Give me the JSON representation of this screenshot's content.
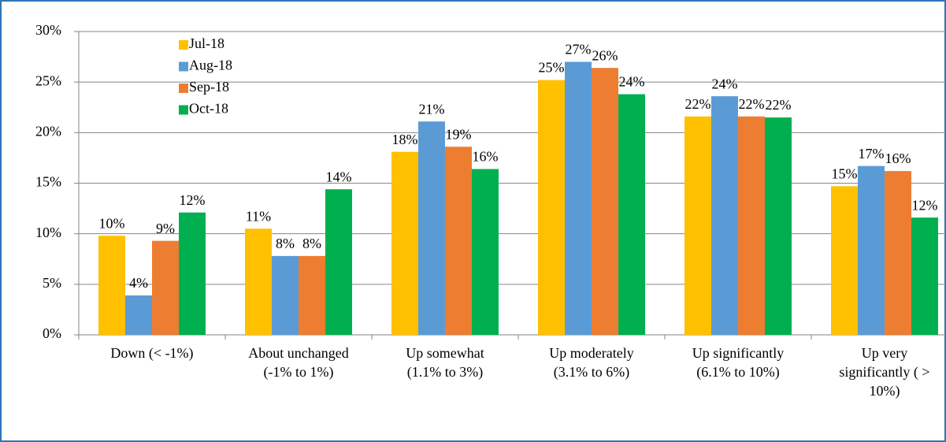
{
  "chart_data": {
    "type": "bar",
    "categories": [
      [
        "Down (< -1%)"
      ],
      [
        "About unchanged",
        "(-1% to 1%)"
      ],
      [
        "Up somewhat",
        "(1.1% to 3%)"
      ],
      [
        "Up moderately",
        "(3.1% to 6%)"
      ],
      [
        "Up significantly",
        "(6.1% to 10%)"
      ],
      [
        "Up very",
        "significantly ( >",
        "10%)"
      ]
    ],
    "series": [
      {
        "name": "Jul-18",
        "color": "#FFC000",
        "values": [
          9.8,
          10.5,
          18.1,
          25.2,
          21.6,
          14.7
        ],
        "value_labels": [
          "10%",
          "11%",
          "18%",
          "25%",
          "22%",
          "15%"
        ]
      },
      {
        "name": "Aug-18",
        "color": "#5B9BD5",
        "values": [
          3.9,
          7.8,
          21.1,
          27.0,
          23.6,
          16.7
        ],
        "value_labels": [
          "4%",
          "8%",
          "21%",
          "27%",
          "24%",
          "17%"
        ]
      },
      {
        "name": "Sep-18",
        "color": "#ED7D31",
        "values": [
          9.3,
          7.8,
          18.6,
          26.4,
          21.6,
          16.2
        ],
        "value_labels": [
          "9%",
          "8%",
          "19%",
          "26%",
          "22%",
          "16%"
        ]
      },
      {
        "name": "Oct-18",
        "color": "#00B050",
        "values": [
          12.1,
          14.4,
          16.4,
          23.8,
          21.5,
          11.6
        ],
        "value_labels": [
          "12%",
          "14%",
          "16%",
          "24%",
          "22%",
          "12%"
        ]
      }
    ],
    "ylim": [
      0,
      30
    ],
    "yticks": [
      {
        "value": 0,
        "label": "0%"
      },
      {
        "value": 5,
        "label": "5%"
      },
      {
        "value": 10,
        "label": "10%"
      },
      {
        "value": 15,
        "label": "15%"
      },
      {
        "value": 20,
        "label": "20%"
      },
      {
        "value": 25,
        "label": "25%"
      },
      {
        "value": 30,
        "label": "30%"
      }
    ],
    "grid": true,
    "legend": "top-left"
  }
}
